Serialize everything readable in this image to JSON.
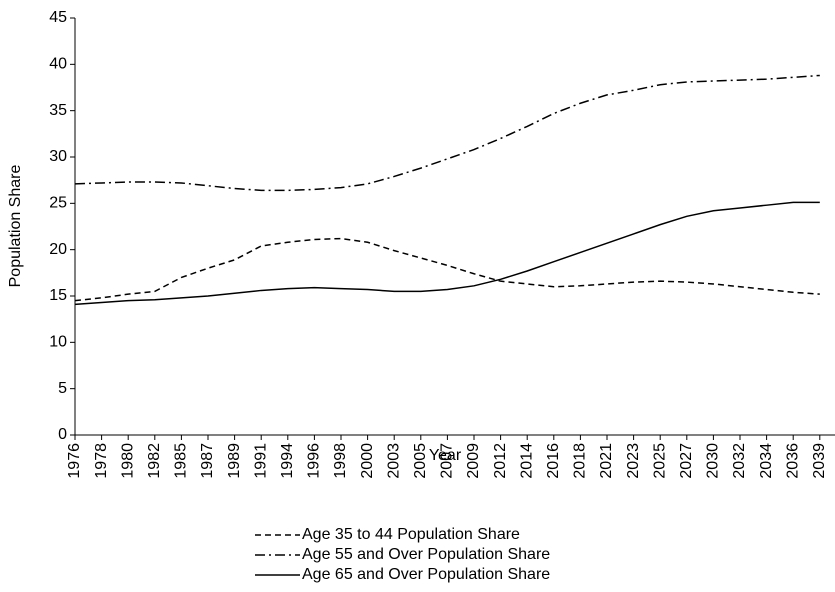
{
  "chart_data": {
    "type": "line",
    "x_label": "Year",
    "y_label": "Population Share",
    "categories": [
      "1976",
      "1978",
      "1980",
      "1982",
      "1985",
      "1987",
      "1989",
      "1991",
      "1994",
      "1996",
      "1998",
      "2000",
      "2003",
      "2005",
      "2007",
      "2009",
      "2012",
      "2014",
      "2016",
      "2018",
      "2021",
      "2023",
      "2025",
      "2027",
      "2030",
      "2032",
      "2034",
      "2036",
      "2039"
    ],
    "series": [
      {
        "name": "Age 35 to 44 Population Share",
        "color": "#000000",
        "dash": "dashed",
        "values": [
          14.5,
          14.8,
          15.2,
          15.5,
          17.0,
          18.0,
          18.9,
          20.4,
          20.8,
          21.1,
          21.2,
          20.8,
          19.9,
          19.1,
          18.3,
          17.4,
          16.6,
          16.3,
          16.0,
          16.1,
          16.3,
          16.5,
          16.6,
          16.5,
          16.3,
          16.0,
          15.7,
          15.4,
          15.2
        ]
      },
      {
        "name": "Age 55 and Over Population Share",
        "color": "#000000",
        "dash": "dashdot",
        "values": [
          27.1,
          27.2,
          27.3,
          27.3,
          27.2,
          26.9,
          26.6,
          26.4,
          26.4,
          26.5,
          26.7,
          27.1,
          27.9,
          28.8,
          29.8,
          30.8,
          32.0,
          33.3,
          34.7,
          35.8,
          36.7,
          37.2,
          37.8,
          38.1,
          38.2,
          38.3,
          38.4,
          38.6,
          38.8
        ]
      },
      {
        "name": "Age 65 and Over Population Share",
        "color": "#000000",
        "dash": "solid",
        "values": [
          14.1,
          14.3,
          14.5,
          14.6,
          14.8,
          15.0,
          15.3,
          15.6,
          15.8,
          15.9,
          15.8,
          15.7,
          15.5,
          15.5,
          15.7,
          16.1,
          16.8,
          17.7,
          18.7,
          19.7,
          20.7,
          21.7,
          22.7,
          23.6,
          24.2,
          24.5,
          24.8,
          25.1,
          25.1
        ]
      }
    ],
    "ylim": [
      0,
      45
    ],
    "yticks": [
      0,
      5,
      10,
      15,
      20,
      25,
      30,
      35,
      40,
      45
    ],
    "grid": false
  }
}
